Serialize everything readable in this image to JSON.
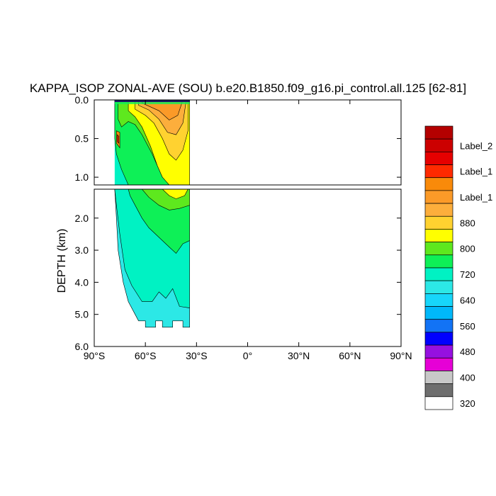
{
  "chart_data": {
    "type": "contour",
    "title": "KAPPA_ISOP ZONAL-AVE (SOU) b.e20.B1850.f09_g16.pi_control.all.125 [62-81]",
    "ylabel": "DEPTH (km)",
    "xlim": [
      -90,
      90
    ],
    "ylim": [
      6.0,
      0.0
    ],
    "x_ticks": [
      {
        "value": -90,
        "label": "90°S"
      },
      {
        "value": -60,
        "label": "60°S"
      },
      {
        "value": -30,
        "label": "30°S"
      },
      {
        "value": 0,
        "label": "0°"
      },
      {
        "value": 30,
        "label": "30°N"
      },
      {
        "value": 60,
        "label": "60°N"
      },
      {
        "value": 90,
        "label": "90°N"
      }
    ],
    "upper_panel": {
      "depth_range": [
        0.0,
        1.1
      ],
      "y_ticks": [
        {
          "value": 0.0,
          "label": "0.0"
        },
        {
          "value": 0.5,
          "label": "0.5"
        },
        {
          "value": 1.0,
          "label": "1.0"
        }
      ]
    },
    "lower_panel": {
      "depth_range": [
        1.1,
        6.0
      ],
      "y_ticks": [
        {
          "value": 2.0,
          "label": "2.0"
        },
        {
          "value": 3.0,
          "label": "3.0"
        },
        {
          "value": 4.0,
          "label": "4.0"
        },
        {
          "value": 5.0,
          "label": "5.0"
        },
        {
          "value": 6.0,
          "label": "6.0"
        }
      ]
    },
    "data_extent": {
      "lat_min": -78,
      "lat_max": -34,
      "max_depth": 5.4
    },
    "colorbar": {
      "colors_top_to_bottom": [
        "#b40000",
        "#cc0000",
        "#e60000",
        "#ff2a00",
        "#f98a0a",
        "#fb9a28",
        "#fcae3c",
        "#ffd230",
        "#ffff00",
        "#5ee81e",
        "#0ef057",
        "#00f2c3",
        "#2ce8e6",
        "#17d6fa",
        "#00b8fa",
        "#1273f5",
        "#0000ff",
        "#9610e0",
        "#e600d6",
        "#c8c8c8",
        "#6e6e6e",
        "#ffffff"
      ],
      "labels": [
        {
          "level_index": 1,
          "text": "Label_2"
        },
        {
          "level_index": 3,
          "text": "Label_1"
        },
        {
          "level_index": 5,
          "text": "Label_1"
        },
        {
          "level_index": 7,
          "text": "880"
        },
        {
          "level_index": 9,
          "text": "800"
        },
        {
          "level_index": 11,
          "text": "720"
        },
        {
          "level_index": 13,
          "text": "640"
        },
        {
          "level_index": 15,
          "text": "560"
        },
        {
          "level_index": 17,
          "text": "480"
        },
        {
          "level_index": 19,
          "text": "400"
        },
        {
          "level_index": 21,
          "text": "320"
        }
      ]
    }
  }
}
